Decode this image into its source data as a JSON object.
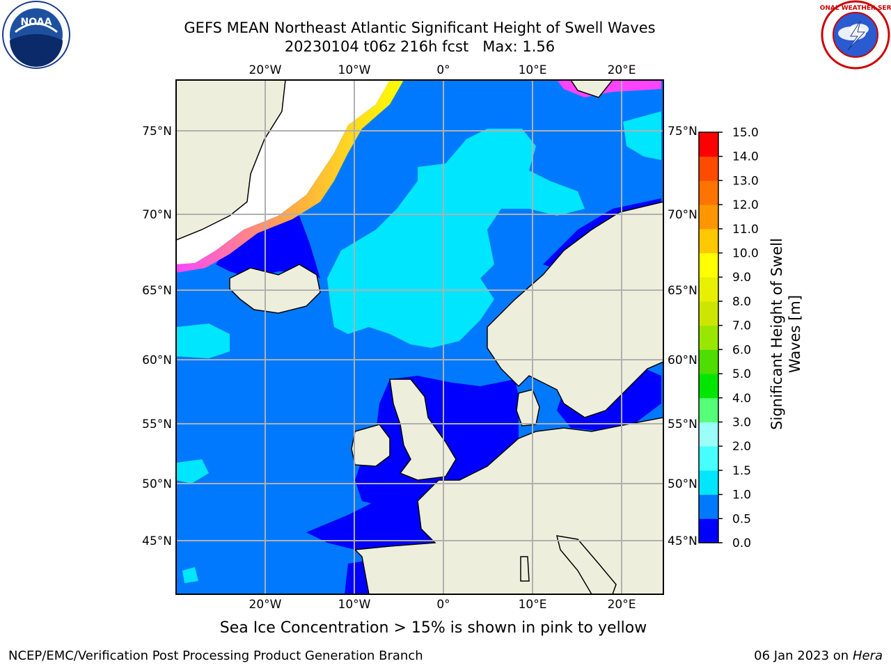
{
  "title": {
    "line1": "GEFS MEAN Northeast Atlantic Significant Height of Swell Waves",
    "line2": "20230104 t06z 216h fcst   Max: 1.56"
  },
  "map": {
    "lon_labels": [
      "20°W",
      "10°W",
      "0°",
      "10°E",
      "20°E"
    ],
    "lat_labels": [
      "75°N",
      "70°N",
      "65°N",
      "60°N",
      "55°N",
      "50°N",
      "45°N"
    ],
    "colors": {
      "land": "#eeeedd",
      "ice_free_sea": "#ffffff",
      "grid": "#b0b0b0"
    }
  },
  "colorbar": {
    "title": "Significant Height of Swell Waves [m]",
    "ticks": [
      "0.0",
      "0.5",
      "1.0",
      "1.5",
      "2.0",
      "3.0",
      "4.0",
      "5.0",
      "6.0",
      "7.0",
      "8.0",
      "9.0",
      "10.0",
      "11.0",
      "12.0",
      "13.0",
      "14.0",
      "15.0"
    ],
    "colors": [
      "#0000ff",
      "#0079ff",
      "#00e6ff",
      "#47ffff",
      "#9bfff7",
      "#55ff77",
      "#00e600",
      "#4ddd00",
      "#99e600",
      "#cce600",
      "#e6f000",
      "#ffff00",
      "#ffc800",
      "#ff9600",
      "#ff7300",
      "#ff4b00",
      "#ff0000"
    ]
  },
  "caption": "Sea Ice Concentration > 15% is shown in pink to yellow",
  "footer": {
    "left": "NCEP/EMC/Verification Post Processing Product Generation Branch",
    "date": "06 Jan 2023 on",
    "machine": "Hera"
  },
  "logos": {
    "noaa": "NOAA",
    "nws": "NATIONAL WEATHER SERVICE"
  }
}
